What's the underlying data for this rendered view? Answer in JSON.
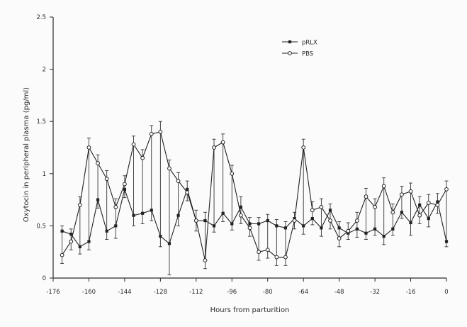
{
  "chart_data": {
    "type": "line",
    "xlabel": "Hours from parturition",
    "ylabel": "Oxytocin in peripheral plasma (pg/ml)",
    "xlim": [
      -176,
      0
    ],
    "ylim": [
      0,
      2.5
    ],
    "x_ticks": [
      -176,
      -160,
      -144,
      -128,
      -112,
      -96,
      -80,
      -64,
      -48,
      -32,
      -16,
      0
    ],
    "x_tick_labels": [
      "-176",
      "-160",
      "-144",
      "-128",
      "-112",
      "-96",
      "-80",
      "-64",
      "-48",
      "-32",
      "-16",
      "0"
    ],
    "y_ticks": [
      0,
      0.5,
      1,
      1.5,
      2,
      2.5
    ],
    "y_tick_labels": [
      "0",
      "0.5",
      "1",
      "1.5",
      "2",
      "2.5"
    ],
    "legend_position": "top-center",
    "grid": false,
    "series": [
      {
        "name": "pRLX",
        "marker": "filled",
        "x": [
          -172,
          -168,
          -164,
          -160,
          -156,
          -152,
          -148,
          -144,
          -140,
          -136,
          -132,
          -128,
          -124,
          -120,
          -116,
          -112,
          -108,
          -104,
          -100,
          -96,
          -92,
          -88,
          -84,
          -80,
          -76,
          -72,
          -68,
          -64,
          -60,
          -56,
          -52,
          -48,
          -44,
          -40,
          -36,
          -32,
          -28,
          -24,
          -20,
          -16,
          -12,
          -8,
          -4,
          0
        ],
        "y": [
          0.45,
          0.42,
          0.3,
          0.35,
          0.75,
          0.45,
          0.5,
          0.85,
          0.6,
          0.62,
          0.65,
          0.4,
          0.33,
          0.6,
          0.85,
          0.55,
          0.55,
          0.5,
          0.62,
          0.52,
          0.68,
          0.52,
          0.52,
          0.55,
          0.5,
          0.48,
          0.57,
          0.5,
          0.57,
          0.48,
          0.65,
          0.48,
          0.43,
          0.47,
          0.43,
          0.47,
          0.4,
          0.47,
          0.63,
          0.53,
          0.7,
          0.57,
          0.73,
          0.35
        ],
        "error": [
          0.05,
          0.05,
          0.07,
          0.08,
          0.08,
          0.08,
          0.12,
          0.08,
          0.1,
          0.1,
          0.1,
          0.1,
          0.3,
          0.1,
          0.08,
          0.1,
          0.08,
          0.06,
          0.08,
          0.06,
          0.1,
          0.06,
          0.06,
          0.06,
          0.06,
          0.06,
          0.06,
          0.08,
          0.06,
          0.08,
          0.06,
          0.06,
          0.06,
          0.08,
          0.06,
          0.06,
          0.08,
          0.06,
          0.06,
          0.12,
          0.08,
          0.08,
          0.08,
          0.05
        ]
      },
      {
        "name": "PBS",
        "marker": "open",
        "x": [
          -172,
          -168,
          -164,
          -160,
          -156,
          -152,
          -148,
          -144,
          -140,
          -136,
          -132,
          -128,
          -124,
          -120,
          -116,
          -112,
          -108,
          -104,
          -100,
          -96,
          -92,
          -88,
          -84,
          -80,
          -76,
          -72,
          -68,
          -64,
          -60,
          -56,
          -52,
          -48,
          -44,
          -40,
          -36,
          -32,
          -28,
          -24,
          -20,
          -16,
          -12,
          -8,
          -4,
          0
        ],
        "y": [
          0.22,
          0.35,
          0.7,
          1.25,
          1.1,
          0.95,
          0.68,
          0.9,
          1.28,
          1.15,
          1.38,
          1.4,
          1.05,
          0.93,
          0.82,
          0.55,
          0.17,
          1.25,
          1.3,
          1.0,
          0.6,
          0.48,
          0.25,
          0.27,
          0.2,
          0.2,
          0.55,
          1.25,
          0.65,
          0.68,
          0.55,
          0.38,
          0.45,
          0.55,
          0.78,
          0.68,
          0.88,
          0.63,
          0.8,
          0.83,
          0.6,
          0.72,
          0.7,
          0.85
        ]
      }
    ]
  }
}
